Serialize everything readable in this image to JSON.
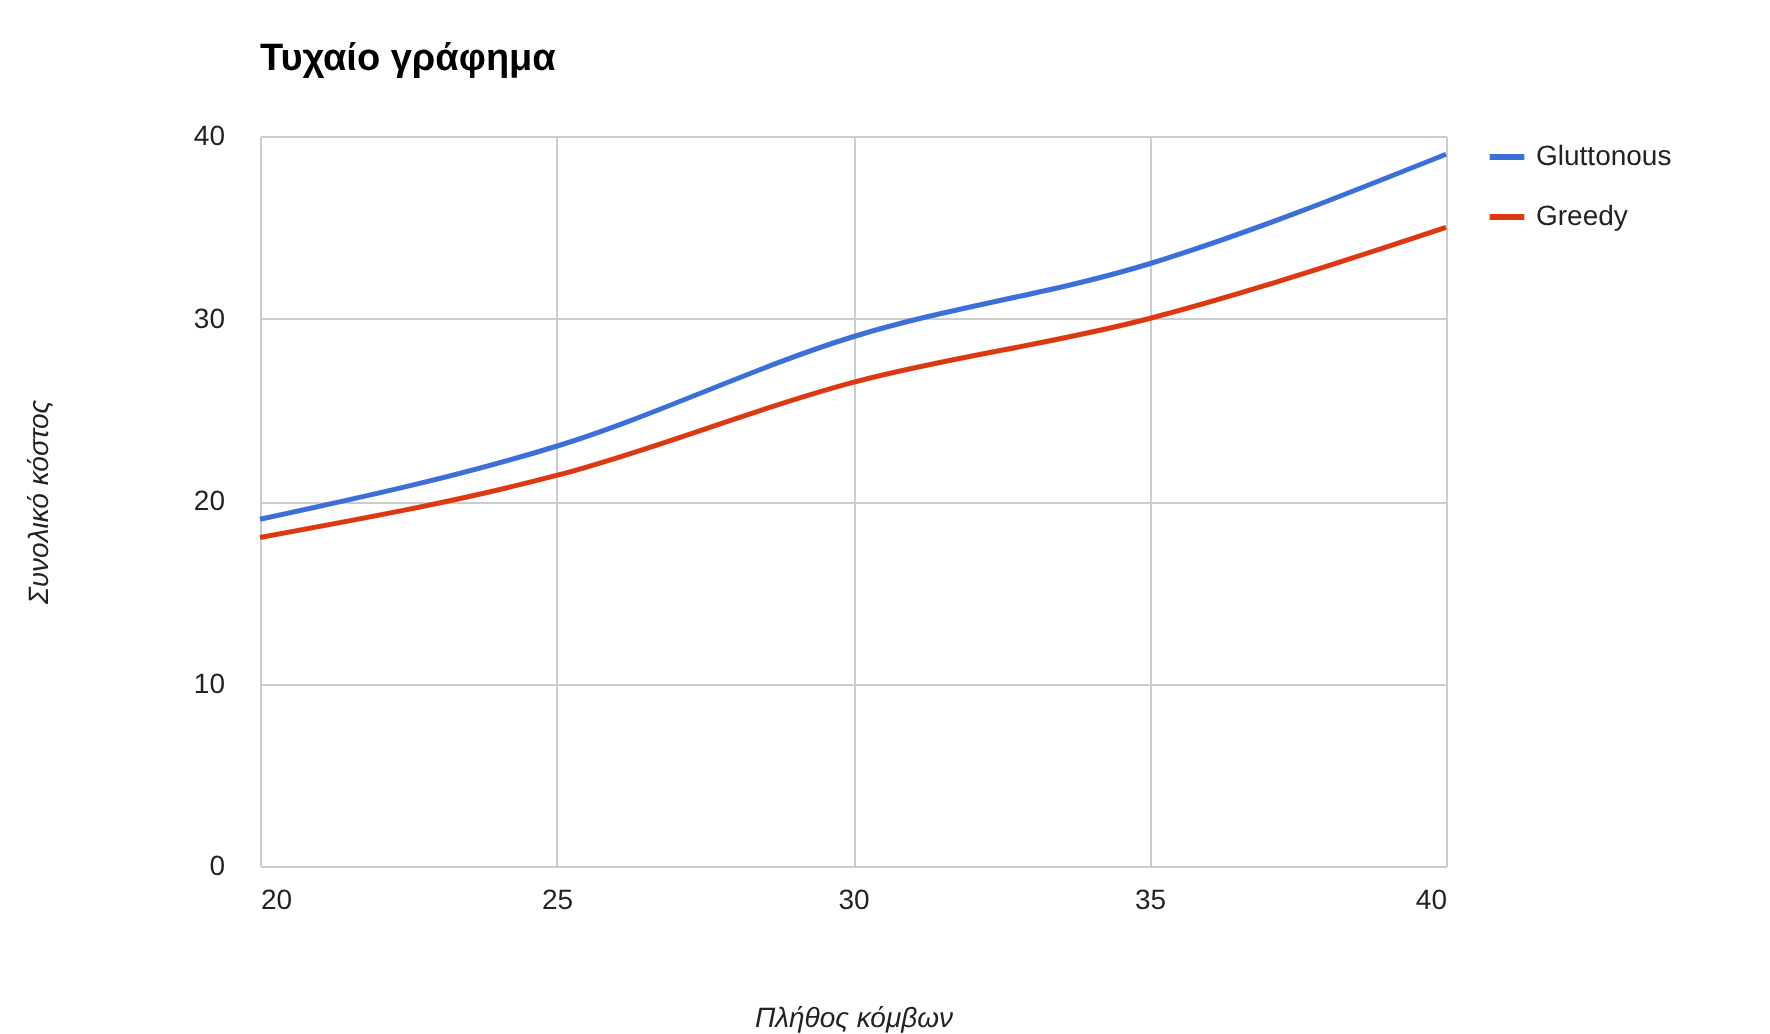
{
  "chart_data": {
    "type": "line",
    "title": "Τυχαίο γράφημα",
    "xlabel": "Πλήθος κόμβων",
    "ylabel": "Συνολικό κόστος",
    "x": [
      20,
      25,
      30,
      35,
      40
    ],
    "series": [
      {
        "name": "Gluttonous",
        "color": "#3c6fd8",
        "values": [
          19,
          23,
          29,
          33,
          39
        ]
      },
      {
        "name": "Greedy",
        "color": "#dc3912",
        "values": [
          18,
          21.4,
          26.5,
          30,
          35
        ]
      }
    ],
    "xlim": [
      20,
      40
    ],
    "xticks": [
      20,
      25,
      30,
      35,
      40
    ],
    "ylim": [
      0,
      40
    ],
    "yticks": [
      0,
      10,
      20,
      30,
      40
    ],
    "grid": true,
    "legend": "top right"
  }
}
